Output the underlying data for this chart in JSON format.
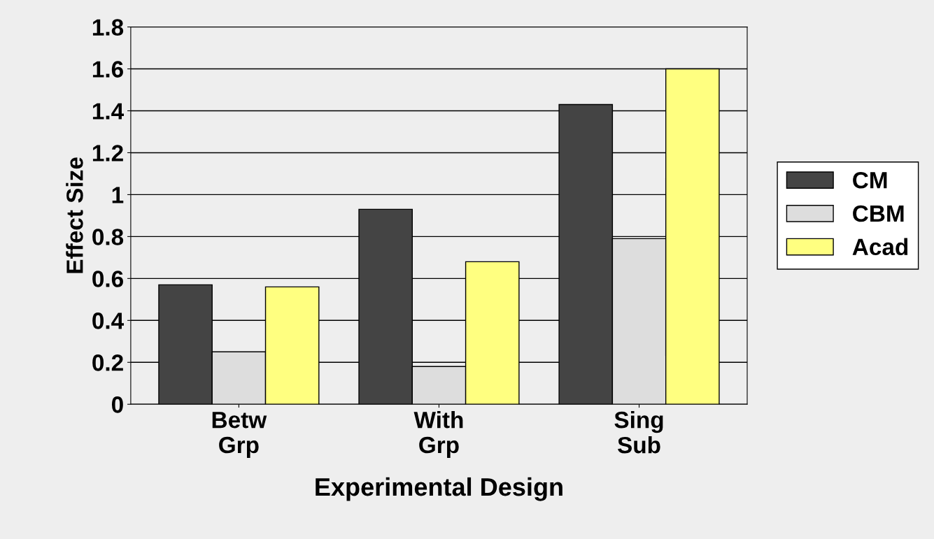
{
  "chart_data": {
    "type": "bar",
    "xlabel": "Experimental Design",
    "ylabel": "Effect Size",
    "categories": [
      "Betw\nGrp",
      "With\nGrp",
      "Sing\nSub"
    ],
    "series": [
      {
        "name": "CM",
        "color": "#444444",
        "values": [
          0.57,
          0.93,
          1.43
        ]
      },
      {
        "name": "CBM",
        "color": "#dddddd",
        "values": [
          0.25,
          0.18,
          0.79
        ]
      },
      {
        "name": "Acad",
        "color": "#ffff80",
        "values": [
          0.56,
          0.68,
          1.6
        ]
      }
    ],
    "ylim": [
      0,
      1.8
    ],
    "yticks": [
      0,
      0.2,
      0.4,
      0.6,
      0.8,
      1,
      1.2,
      1.4,
      1.6,
      1.8
    ],
    "grid": "y",
    "legend": "right"
  }
}
